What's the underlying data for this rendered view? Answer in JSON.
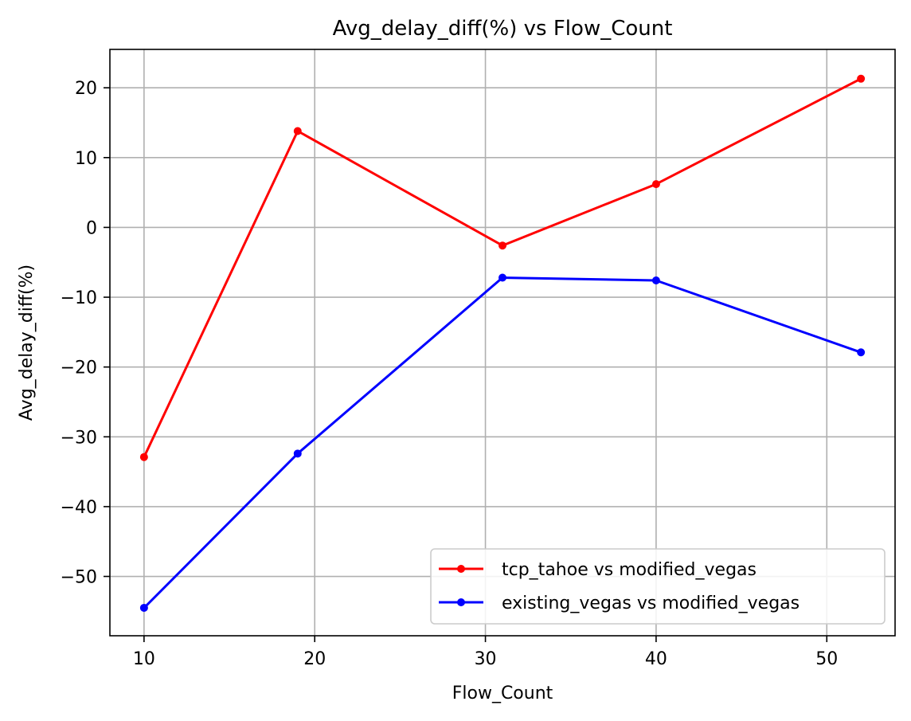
{
  "chart_data": {
    "type": "line",
    "title": "Avg_delay_diff(%) vs Flow_Count",
    "xlabel": "Flow_Count",
    "ylabel": "Avg_delay_diff(%)",
    "x": [
      10,
      19,
      31,
      40,
      52
    ],
    "xlim": [
      8,
      54
    ],
    "ylim": [
      -58.5,
      25.5
    ],
    "xticks": [
      10,
      20,
      30,
      40,
      50
    ],
    "yticks": [
      -50,
      -40,
      -30,
      -20,
      -10,
      0,
      10,
      20
    ],
    "ytick_labels": [
      "−50",
      "−40",
      "−30",
      "−20",
      "−10",
      "0",
      "10",
      "20"
    ],
    "grid": true,
    "legend_position": "lower-right",
    "series": [
      {
        "name": "tcp_tahoe vs modified_vegas",
        "color": "#ff0000",
        "values": [
          -32.9,
          13.8,
          -2.6,
          6.2,
          21.3
        ]
      },
      {
        "name": "existing_vegas vs modified_vegas",
        "color": "#0000ff",
        "values": [
          -54.5,
          -32.4,
          -7.2,
          -7.6,
          -17.9
        ]
      }
    ]
  }
}
